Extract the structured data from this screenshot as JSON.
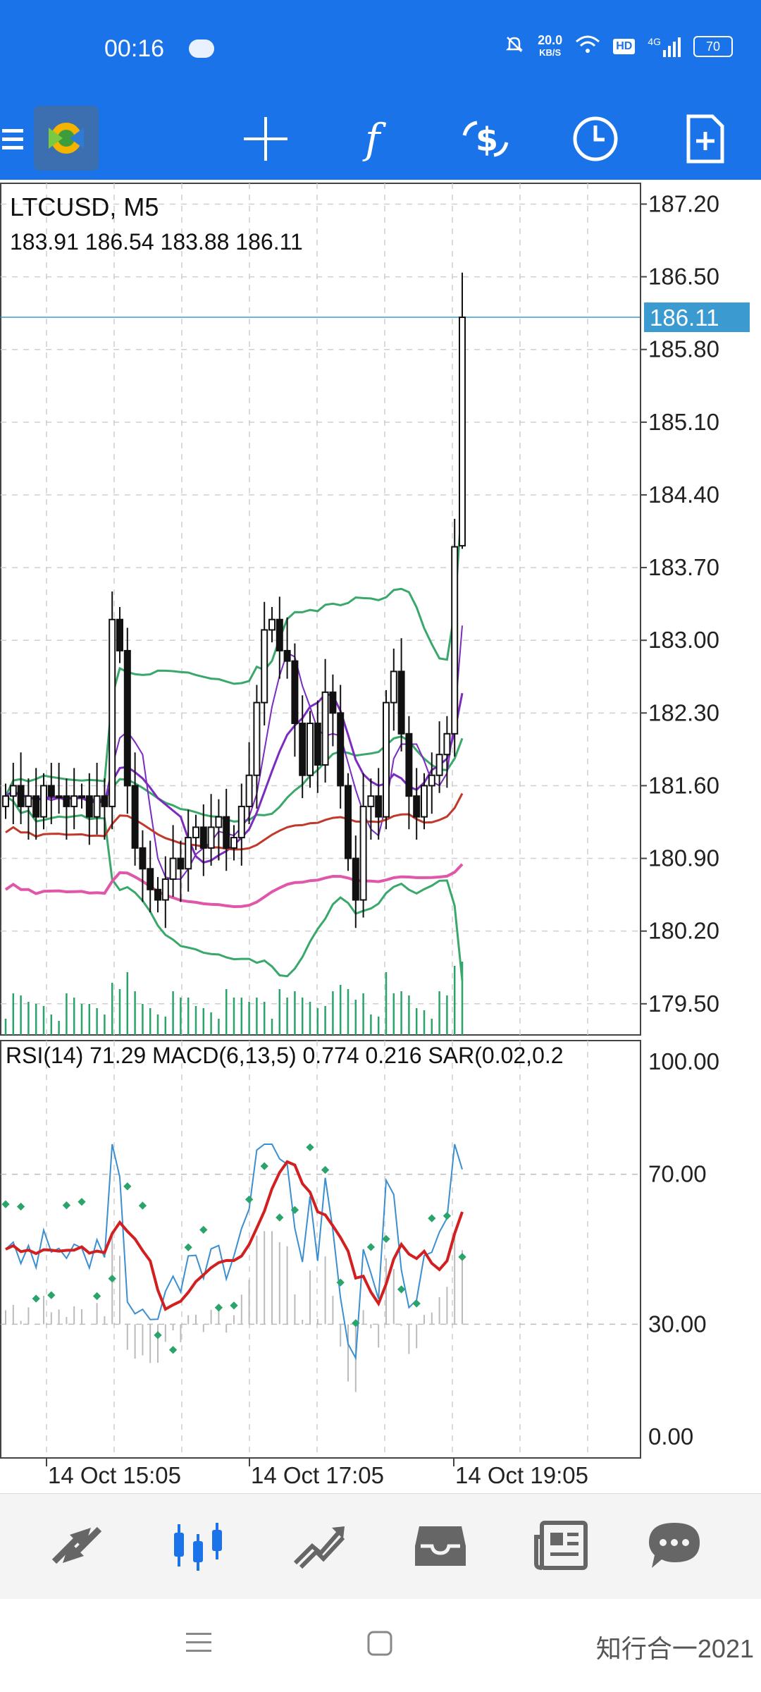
{
  "status_bar": {
    "time": "00:16",
    "net_speed_value": "20.0",
    "net_speed_unit": "KB/S",
    "hd_label": "HD",
    "signal_label": "4G",
    "battery": "70"
  },
  "toolbar": {
    "icons": [
      "menu-icon",
      "metatrader-logo",
      "crosshair-icon",
      "function-icon",
      "currency-switch-icon",
      "clock-icon",
      "new-order-icon"
    ]
  },
  "chart": {
    "symbol_title": "LTCUSD, M5",
    "ohlc": "183.91 186.54 183.88 186.11",
    "current_price": "186.11",
    "price_ticks": [
      "187.20",
      "186.50",
      "185.80",
      "185.10",
      "184.40",
      "183.70",
      "183.00",
      "182.30",
      "181.60",
      "180.90",
      "180.20",
      "179.50"
    ],
    "time_ticks": [
      "14 Oct 15:05",
      "14 Oct 17:05",
      "14 Oct 19:05"
    ],
    "indicator_title": "RSI(14) 71.29 MACD(6,13,5) 0.774 0.216 SAR(0.02,0.2",
    "indicator_ticks": [
      "100.00",
      "70.00",
      "30.00",
      "0.00"
    ],
    "colors": {
      "price_line": "#3b9bd1",
      "bollinger": "#3aa86b",
      "ma_slow": "#c0392b",
      "ma_pink": "#e056a8",
      "ma_purple": "#7b2cbf",
      "rsi": "#3b8fd1",
      "macd_signal": "#d21f1f",
      "sar": "#2aa46a"
    }
  },
  "chart_data": {
    "type": "candlestick",
    "symbol": "LTCUSD",
    "timeframe": "M5",
    "open": 183.91,
    "high": 186.54,
    "low": 183.88,
    "close": 186.11,
    "ylim": [
      179.2,
      187.4
    ],
    "rsi": 71.29,
    "macd_main": 0.774,
    "macd_signal": 0.216,
    "close_series": [
      181.5,
      181.6,
      181.4,
      181.5,
      181.3,
      181.6,
      181.5,
      181.5,
      181.4,
      181.5,
      181.5,
      181.3,
      181.5,
      181.4,
      183.2,
      182.9,
      181.6,
      181.0,
      180.8,
      180.6,
      180.5,
      180.7,
      180.9,
      180.8,
      181.1,
      181.2,
      181.0,
      181.2,
      181.3,
      181.0,
      181.1,
      181.4,
      181.7,
      182.4,
      183.1,
      183.2,
      182.9,
      182.8,
      182.2,
      181.7,
      182.2,
      181.8,
      182.5,
      182.3,
      181.6,
      180.9,
      180.5,
      181.4,
      181.5,
      181.3,
      182.4,
      182.7,
      182.1,
      181.5,
      181.3,
      181.6,
      181.7,
      181.9,
      182.1,
      183.9,
      186.11
    ]
  },
  "bottom_nav": {
    "icons": [
      "quotes-icon",
      "chart-icon",
      "trade-icon",
      "history-icon",
      "news-icon",
      "chat-icon"
    ]
  },
  "watermark": "知行合一2021"
}
